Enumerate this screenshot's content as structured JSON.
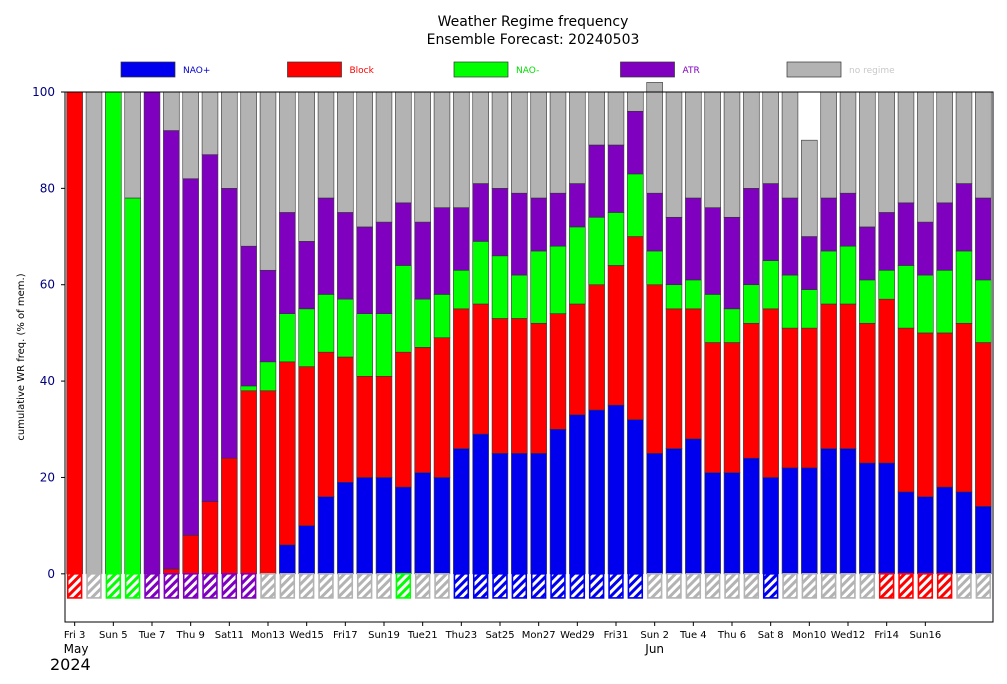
{
  "chart_data": {
    "type": "bar",
    "stacked": true,
    "title": "Weather Regime frequency",
    "subtitle": "Ensemble Forecast: 20240503",
    "ylabel": "cumulative WR freq. (% of mem.)",
    "ylim": [
      -10,
      100
    ],
    "yticks": [
      0,
      20,
      40,
      60,
      80,
      100
    ],
    "grid": false,
    "legend_position": "top",
    "series": [
      {
        "name": "NAO+",
        "color": "#0000ee",
        "label_color": "#0000cc",
        "values": [
          0,
          0,
          0,
          0,
          0,
          0,
          0,
          0,
          0,
          0,
          0,
          6,
          10,
          16,
          19,
          20,
          20,
          18,
          21,
          20,
          26,
          29,
          25,
          25,
          25,
          30,
          33,
          34,
          35,
          32,
          25,
          26,
          28,
          21,
          21,
          24,
          20,
          22,
          22,
          26,
          26,
          23,
          23,
          17,
          16,
          18,
          17,
          14
        ]
      },
      {
        "name": "Block",
        "color": "#ff0000",
        "label_color": "#ff0000",
        "values": [
          100,
          0,
          0,
          0,
          0,
          1,
          8,
          15,
          24,
          38,
          38,
          38,
          33,
          30,
          26,
          21,
          21,
          28,
          26,
          29,
          29,
          27,
          28,
          28,
          27,
          24,
          23,
          26,
          29,
          38,
          35,
          29,
          27,
          27,
          27,
          28,
          35,
          29,
          29,
          30,
          30,
          29,
          34,
          34,
          34,
          32,
          35,
          34
        ]
      },
      {
        "name": "NAO-",
        "color": "#00ff00",
        "label_color": "#00dd00",
        "values": [
          0,
          0,
          100,
          78,
          0,
          0,
          0,
          0,
          0,
          1,
          6,
          10,
          12,
          12,
          12,
          13,
          13,
          18,
          10,
          9,
          8,
          13,
          13,
          9,
          15,
          14,
          16,
          14,
          11,
          13,
          7,
          5,
          6,
          10,
          7,
          8,
          10,
          11,
          8,
          11,
          12,
          9,
          6,
          13,
          12,
          13,
          15,
          13
        ]
      },
      {
        "name": "ATR",
        "color": "#7f00bf",
        "label_color": "#7f00bf",
        "values": [
          0,
          0,
          0,
          0,
          100,
          91,
          74,
          72,
          56,
          29,
          19,
          21,
          14,
          20,
          18,
          18,
          19,
          13,
          16,
          18,
          13,
          12,
          14,
          17,
          11,
          11,
          9,
          15,
          14,
          13,
          12,
          14,
          17,
          18,
          19,
          20,
          16,
          16,
          11,
          11,
          11,
          11,
          12,
          13,
          11,
          14,
          14,
          17
        ]
      },
      {
        "name": "no regime",
        "color": "#b3b3b3",
        "label_color": "#c8c8c8",
        "values": [
          0,
          100,
          0,
          22,
          0,
          8,
          18,
          13,
          20,
          32,
          37,
          25,
          31,
          22,
          25,
          28,
          27,
          23,
          27,
          24,
          24,
          19,
          20,
          21,
          22,
          21,
          19,
          11,
          11,
          4,
          23,
          26,
          22,
          24,
          26,
          20,
          19,
          22,
          20,
          22,
          21,
          28,
          25,
          23,
          27,
          23,
          19,
          22
        ]
      }
    ],
    "dominant_regime": [
      "Block",
      "no regime",
      "NAO-",
      "NAO-",
      "ATR",
      "ATR",
      "ATR",
      "ATR",
      "ATR",
      "ATR",
      "no regime",
      "no regime",
      "no regime",
      "no regime",
      "no regime",
      "no regime",
      "no regime",
      "NAO-",
      "no regime",
      "no regime",
      "NAO+",
      "NAO+",
      "NAO+",
      "NAO+",
      "NAO+",
      "NAO+",
      "NAO+",
      "NAO+",
      "NAO+",
      "NAO+",
      "no regime",
      "no regime",
      "no regime",
      "no regime",
      "no regime",
      "no regime",
      "NAO+",
      "no regime",
      "no regime",
      "no regime",
      "no regime",
      "no regime",
      "Block",
      "Block",
      "Block",
      "Block",
      "no regime",
      "no regime"
    ],
    "x_tick_labels": [
      {
        "index": 0,
        "label": "Fri 3",
        "color": "#000000"
      },
      {
        "index": 2,
        "label": "Sun 5",
        "color": "#ff0000"
      },
      {
        "index": 4,
        "label": "Tue 7",
        "color": "#000000"
      },
      {
        "index": 6,
        "label": "Thu 9",
        "color": "#000000"
      },
      {
        "index": 8,
        "label": "Sat11",
        "color": "#000000"
      },
      {
        "index": 10,
        "label": "Mon13",
        "color": "#000000"
      },
      {
        "index": 12,
        "label": "Wed15",
        "color": "#000000"
      },
      {
        "index": 14,
        "label": "Fri17",
        "color": "#000000"
      },
      {
        "index": 16,
        "label": "Sun19",
        "color": "#ff0000"
      },
      {
        "index": 18,
        "label": "Tue21",
        "color": "#000000"
      },
      {
        "index": 20,
        "label": "Thu23",
        "color": "#000000"
      },
      {
        "index": 22,
        "label": "Sat25",
        "color": "#000000"
      },
      {
        "index": 24,
        "label": "Mon27",
        "color": "#000000"
      },
      {
        "index": 26,
        "label": "Wed29",
        "color": "#000000"
      },
      {
        "index": 28,
        "label": "Fri31",
        "color": "#000000"
      },
      {
        "index": 30,
        "label": "Sun 2",
        "color": "#ff0000"
      },
      {
        "index": 32,
        "label": "Tue 4",
        "color": "#000000"
      },
      {
        "index": 34,
        "label": "Thu 6",
        "color": "#000000"
      },
      {
        "index": 36,
        "label": "Sat 8",
        "color": "#000000"
      },
      {
        "index": 38,
        "label": "Mon10",
        "color": "#000000"
      },
      {
        "index": 40,
        "label": "Wed12",
        "color": "#000000"
      },
      {
        "index": 42,
        "label": "Fri14",
        "color": "#000000"
      },
      {
        "index": 44,
        "label": "Sun16",
        "color": "#ff0000"
      }
    ],
    "month_labels": [
      {
        "index": 0,
        "label": "May"
      },
      {
        "index": 30,
        "label": "Jun"
      }
    ],
    "year_label": "2024"
  }
}
